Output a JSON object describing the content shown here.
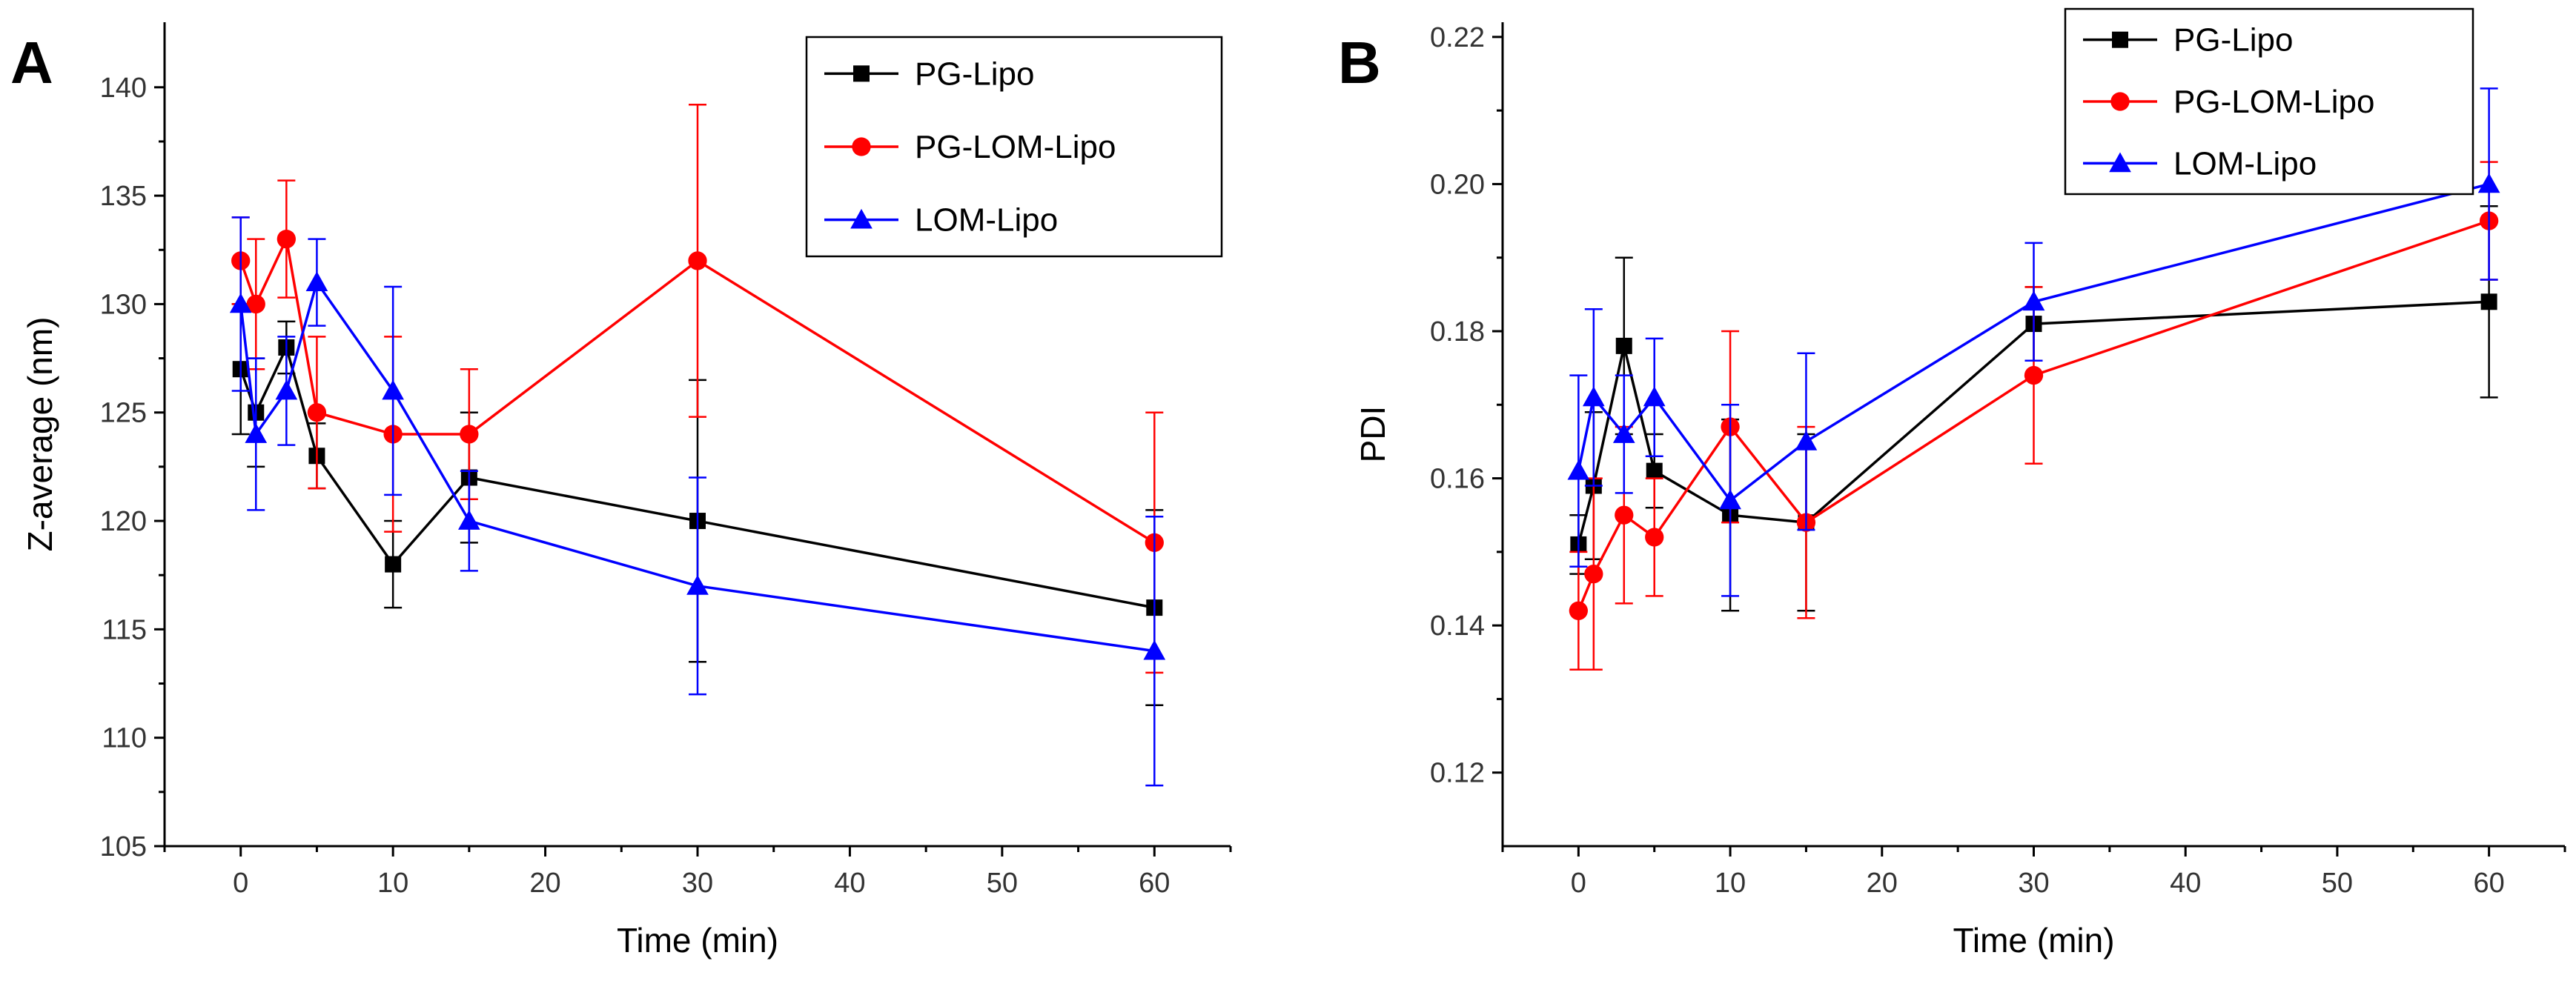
{
  "chart_data": [
    {
      "type": "line",
      "panel_label": "A",
      "title": "",
      "xlabel": "Time (min)",
      "ylabel": "Z-average (nm)",
      "xlim": [
        -5,
        65
      ],
      "ylim": [
        105,
        143
      ],
      "xticks": [
        0,
        10,
        20,
        30,
        40,
        50,
        60
      ],
      "yticks": [
        105,
        110,
        115,
        120,
        125,
        130,
        135,
        140
      ],
      "legend_position": "top-right",
      "x": [
        0,
        1,
        3,
        5,
        10,
        15,
        30,
        60
      ],
      "series": [
        {
          "name": "PG-Lipo",
          "color": "#000000",
          "marker": "square",
          "values": [
            127,
            125,
            128,
            123,
            118,
            122,
            120,
            116
          ],
          "errors": [
            3,
            2.5,
            1.2,
            1.5,
            2,
            3,
            6.5,
            4.5
          ]
        },
        {
          "name": "PG-LOM-Lipo",
          "color": "#ff0000",
          "marker": "circle",
          "values": [
            132,
            130,
            133,
            125,
            124,
            124,
            132,
            119
          ],
          "errors": [
            2,
            3,
            2.7,
            3.5,
            4.5,
            3,
            7.2,
            6
          ]
        },
        {
          "name": "LOM-Lipo",
          "color": "#0000ff",
          "marker": "triangle",
          "values": [
            130,
            124,
            126,
            131,
            126,
            120,
            117,
            114
          ],
          "errors": [
            4,
            3.5,
            2.5,
            2,
            4.8,
            2.3,
            5,
            6.2
          ]
        }
      ]
    },
    {
      "type": "line",
      "panel_label": "B",
      "title": "",
      "xlabel": "Time (min)",
      "ylabel": "PDI",
      "xlim": [
        -5,
        65
      ],
      "ylim": [
        0.11,
        0.222
      ],
      "xticks": [
        0,
        10,
        20,
        30,
        40,
        50,
        60
      ],
      "yticks": [
        0.12,
        0.14,
        0.16,
        0.18,
        0.2,
        0.22
      ],
      "ytick_labels": [
        "0.12",
        "0.14",
        "0.16",
        "0.18",
        "0.20",
        "0.22"
      ],
      "legend_position": "top-right",
      "x": [
        0,
        1,
        3,
        5,
        10,
        15,
        30,
        60
      ],
      "series": [
        {
          "name": "PG-Lipo",
          "color": "#000000",
          "marker": "square",
          "values": [
            0.151,
            0.159,
            0.178,
            0.161,
            0.155,
            0.154,
            0.181,
            0.184
          ],
          "errors": [
            0.004,
            0.01,
            0.012,
            0.005,
            0.013,
            0.012,
            0.005,
            0.013
          ]
        },
        {
          "name": "PG-LOM-Lipo",
          "color": "#ff0000",
          "marker": "circle",
          "values": [
            0.142,
            0.147,
            0.155,
            0.152,
            0.167,
            0.154,
            0.174,
            0.195
          ],
          "errors": [
            0.008,
            0.013,
            0.012,
            0.008,
            0.013,
            0.013,
            0.012,
            0.008
          ]
        },
        {
          "name": "LOM-Lipo",
          "color": "#0000ff",
          "marker": "triangle",
          "values": [
            0.161,
            0.171,
            0.166,
            0.171,
            0.157,
            0.165,
            0.184,
            0.2
          ],
          "errors": [
            0.013,
            0.012,
            0.008,
            0.008,
            0.013,
            0.012,
            0.008,
            0.013
          ]
        }
      ]
    }
  ]
}
